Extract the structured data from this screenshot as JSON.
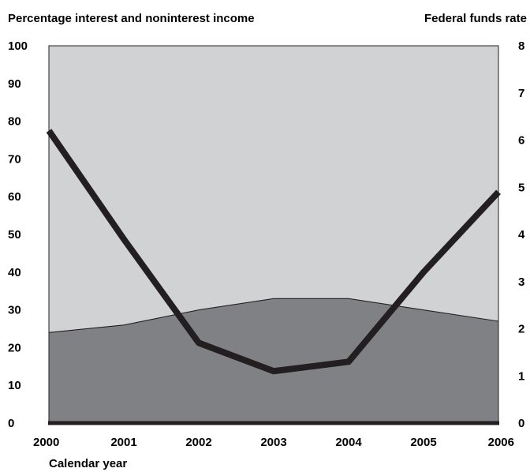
{
  "chart_data": {
    "type": "area",
    "title": "",
    "left_axis_label": "Percentage interest and noninterest income",
    "right_axis_label": "Federal funds rate",
    "xlabel": "Calendar year",
    "categories": [
      "2000",
      "2001",
      "2002",
      "2003",
      "2004",
      "2005",
      "2006"
    ],
    "y_left_ticks": [
      "0",
      "10",
      "20",
      "30",
      "40",
      "50",
      "60",
      "70",
      "80",
      "90",
      "100"
    ],
    "y_right_ticks": [
      "0",
      "1",
      "2",
      "3",
      "4",
      "5",
      "6",
      "7",
      "8"
    ],
    "y_left_range": [
      0,
      100
    ],
    "y_right_range": [
      0,
      8
    ],
    "grid": false,
    "legend": "none",
    "stacked_areas": [
      {
        "values": [
          24,
          26,
          30,
          33,
          33,
          30,
          27
        ],
        "color": "#808184"
      },
      {
        "values": [
          76,
          74,
          70,
          67,
          67,
          70,
          73
        ],
        "color": "#d1d2d4"
      }
    ],
    "line_series": {
      "axis": "right",
      "values": [
        6.2,
        3.9,
        1.7,
        1.1,
        1.3,
        3.2,
        4.9
      ],
      "color": "#231f20"
    }
  }
}
